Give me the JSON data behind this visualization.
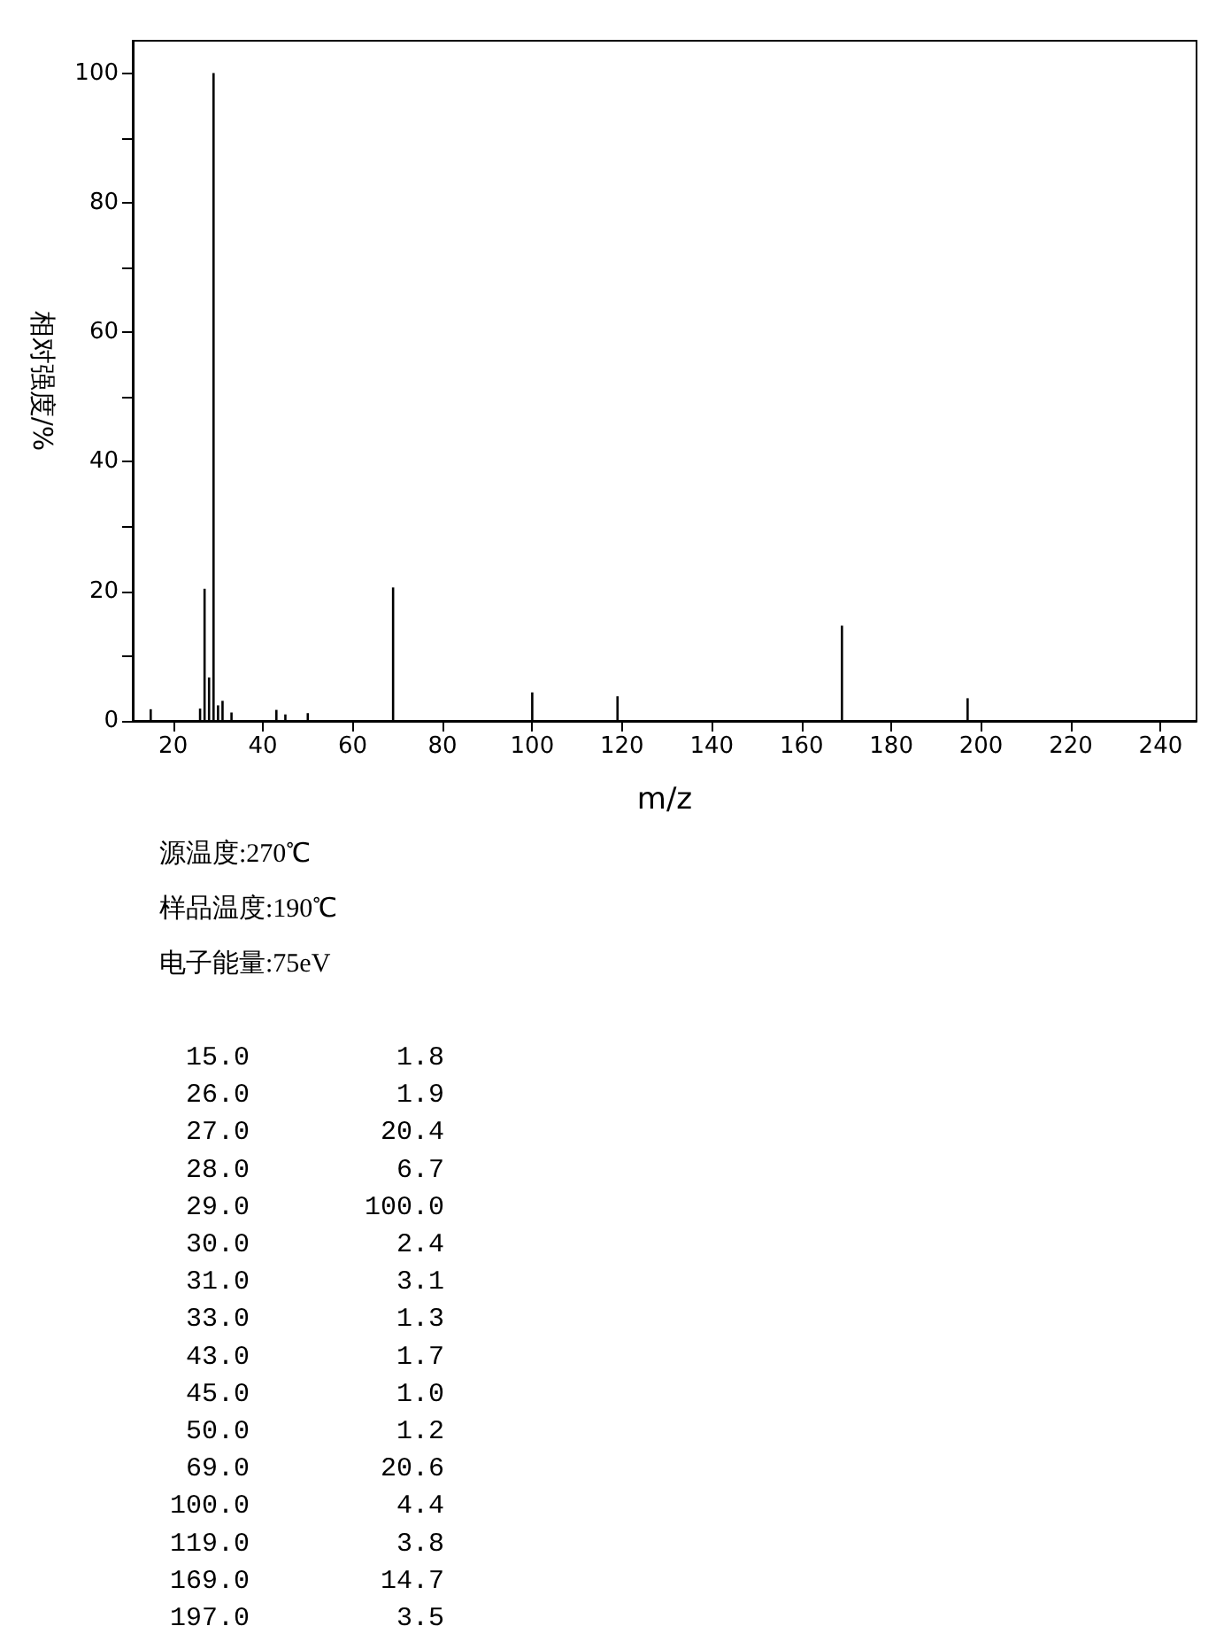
{
  "chart_data": {
    "type": "bar",
    "xlabel": "m/z",
    "ylabel": "相对强度/%",
    "x": [
      15,
      26,
      27,
      28,
      29,
      30,
      31,
      33,
      43,
      45,
      50,
      69,
      100,
      119,
      169,
      197
    ],
    "series": [
      {
        "color": "#000000",
        "values": [
          1.8,
          1.9,
          20.4,
          6.7,
          100.0,
          2.4,
          3.1,
          1.3,
          1.7,
          1.0,
          1.2,
          20.6,
          4.4,
          3.8,
          14.7,
          3.5
        ]
      }
    ],
    "xlim": [
      11,
      248
    ],
    "xticks": [
      20,
      40,
      60,
      80,
      100,
      120,
      140,
      160,
      180,
      200,
      220,
      240
    ],
    "ylim": [
      0,
      105
    ],
    "yticks": [
      0,
      {
        "value": 10,
        "label": null
      },
      20,
      {
        "value": 30,
        "label": null
      },
      40,
      {
        "value": 50,
        "label": null
      },
      60,
      {
        "value": 70,
        "label": null
      },
      80,
      {
        "value": 90,
        "label": null
      },
      100
    ],
    "grid": false,
    "annotations": [
      "源温度:270℃",
      "样品温度:190℃",
      "电子能量:75eV",
      "15.0",
      "1.8",
      "26.0",
      "1.9",
      "27.0",
      "20.4",
      "28.0",
      "6.7",
      "29.0",
      "100.0",
      "30.0",
      "2.4",
      "31.0",
      "3.1",
      "33.0",
      "1.3",
      "43.0",
      "1.7",
      "45.0",
      "1.0",
      "50.0",
      "1.2",
      "69.0",
      "20.6",
      "100.0",
      "4.4",
      "119.0",
      "3.8",
      "169.0",
      "14.7",
      "197.0",
      "3.5"
    ]
  }
}
